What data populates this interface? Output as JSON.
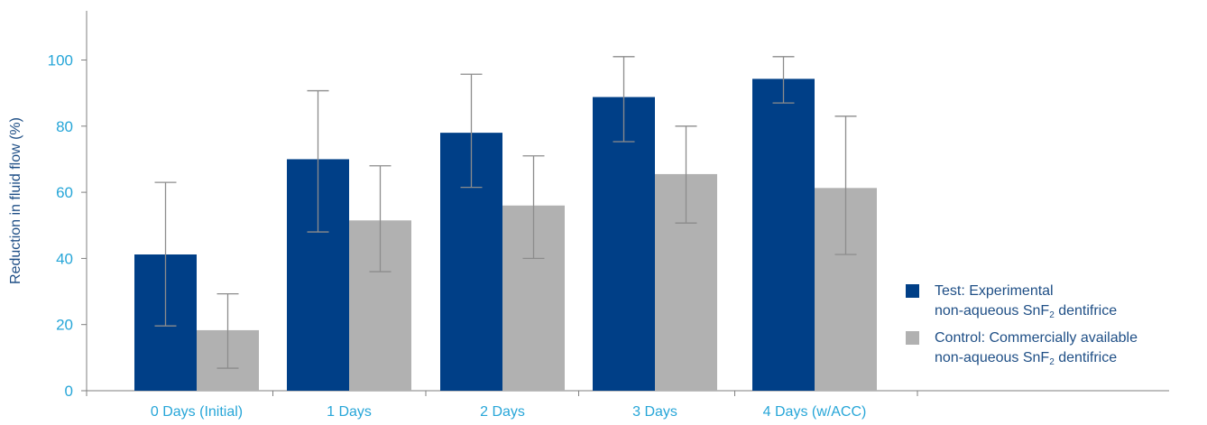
{
  "chart_data": {
    "type": "bar",
    "title": "",
    "xlabel": "",
    "ylabel": "Reduction in fluid flow (%)",
    "ylim": [
      0,
      115
    ],
    "yticks": [
      0,
      20,
      40,
      60,
      80,
      100
    ],
    "categories": [
      "0 Days (Initial)",
      "1 Days",
      "2 Days",
      "3 Days",
      "4 Days (w/ACC)"
    ],
    "series": [
      {
        "name": "Test: Experimental non-aqueous SnF2 dentifrice",
        "color": "#003f87",
        "values": [
          41.2,
          70,
          78,
          88.8,
          94.3
        ],
        "error_low": [
          19.6,
          48,
          61.5,
          75.3,
          87
        ],
        "error_high": [
          63,
          90.7,
          95.7,
          101,
          101
        ]
      },
      {
        "name": "Control: Commercially available non-aqueous SnF2 dentifrice",
        "color": "#b1b1b1",
        "values": [
          18.3,
          51.5,
          56,
          65.5,
          61.3
        ],
        "error_low": [
          6.8,
          36,
          40,
          50.7,
          41.2
        ],
        "error_high": [
          29.3,
          68,
          71,
          80,
          83
        ]
      }
    ],
    "grid": false,
    "legend_position": "right",
    "axis_color": "#7f7f7f",
    "tick_label_color": "#27a6d8",
    "errorbar_color": "#8c8c8c",
    "text_color": "#1f4f86"
  },
  "legend": {
    "test_line1": "Test: Experimental",
    "test_line2_pre": "non-aqueous SnF",
    "test_line2_sub": "2",
    "test_line2_post": " dentifrice",
    "control_line1": "Control: Commercially available",
    "control_line2_pre": "non-aqueous SnF",
    "control_line2_sub": "2",
    "control_line2_post": " dentifrice"
  }
}
